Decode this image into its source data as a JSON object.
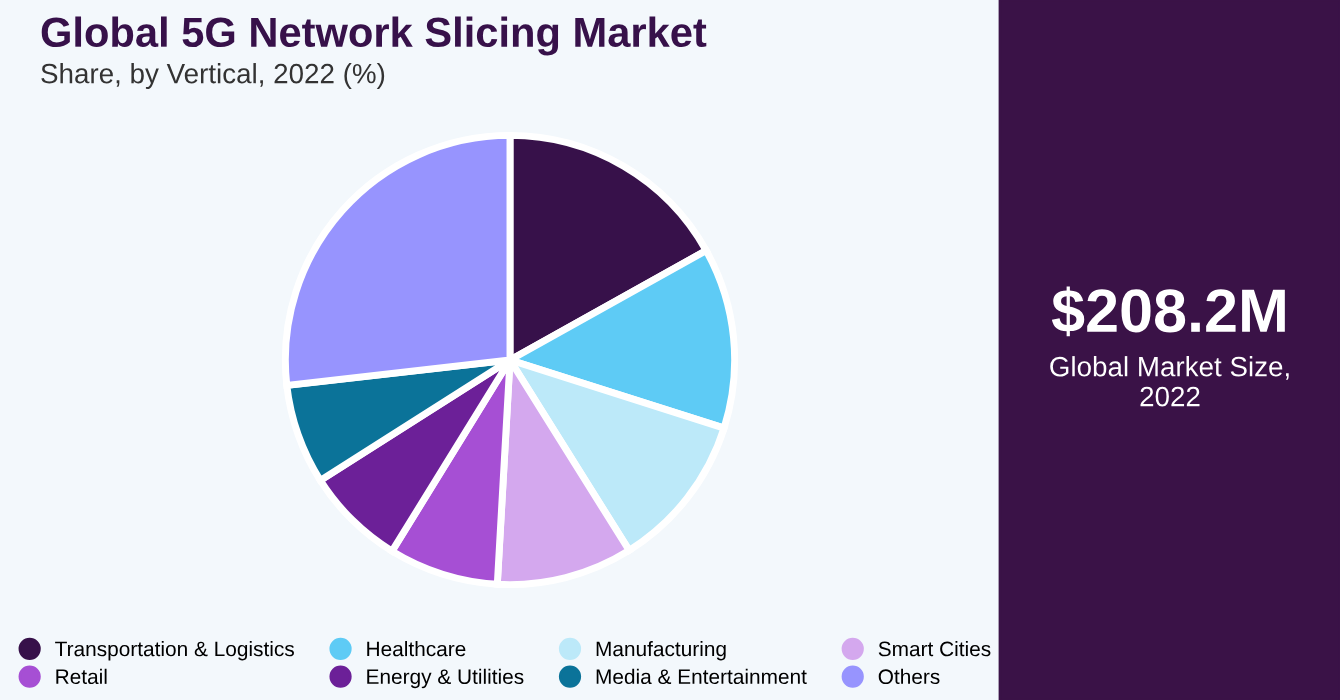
{
  "chart_data": {
    "type": "pie",
    "title": "Global 5G Network Slicing Market",
    "subtitle": "Share, by Vertical, 2022 (%)",
    "categories": [
      "Transportation & Logistics",
      "Healthcare",
      "Manufacturing",
      "Smart Cities",
      "Retail",
      "Energy & Utilities",
      "Media & Entertainment",
      "Others"
    ],
    "values": [
      16.9,
      13.0,
      11.2,
      9.8,
      7.9,
      7.2,
      7.2,
      26.8
    ],
    "colors": [
      "#37114a",
      "#5ecbf5",
      "#bce9f9",
      "#d4a8ee",
      "#a64fd4",
      "#6c2098",
      "#0b7399",
      "#9794fe"
    ],
    "legend": "bottom",
    "annotations": [
      "$208.2M",
      "Global Market Size,\n2022"
    ]
  }
}
